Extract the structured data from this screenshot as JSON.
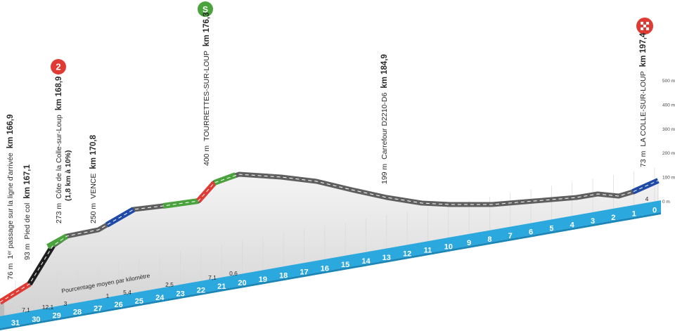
{
  "waypoints": [
    {
      "alt": "76 m",
      "name": "1ᵉʳ passage sur la ligne d'arrivée",
      "km": "km 166,9"
    },
    {
      "alt": "93 m",
      "name": "Pied de col",
      "km": "km 167,1"
    },
    {
      "alt": "273 m",
      "name": "Côte de la Colle-sur-Loup",
      "km": "km 168,9",
      "note": "(1,8 km à 10%)"
    },
    {
      "alt": "250 m",
      "name": "VENCE",
      "km": "km 170,8"
    },
    {
      "alt": "400 m",
      "name": "TOURRETTES-SUR-LOUP",
      "km": "km 176,3"
    },
    {
      "alt": "199 m",
      "name": "Carrefour D2210-D6",
      "km": "km 184,9"
    },
    {
      "alt": "73 m",
      "name": "LA COLLE-SUR-LOUP",
      "km": "km 197,4"
    }
  ],
  "climb_badge": "2",
  "sprint_badge": "S",
  "km_markers": [
    "31",
    "30",
    "29",
    "28",
    "27",
    "26",
    "25",
    "24",
    "23",
    "22",
    "21",
    "20",
    "19",
    "18",
    "17",
    "16",
    "15",
    "14",
    "13",
    "12",
    "11",
    "10",
    "9",
    "8",
    "7",
    "6",
    "5",
    "4",
    "3",
    "2",
    "1",
    "0"
  ],
  "gradient_caption": "Pourcentage moyen par kilomètre",
  "gradients": [
    "7,1",
    "12,1",
    "3",
    "1",
    "5,4",
    "2,5",
    "7,1",
    "0,6",
    "4"
  ],
  "altitude_scale": [
    "500 m",
    "400 m",
    "300 m",
    "200 m",
    "100 m",
    "0 m"
  ]
}
